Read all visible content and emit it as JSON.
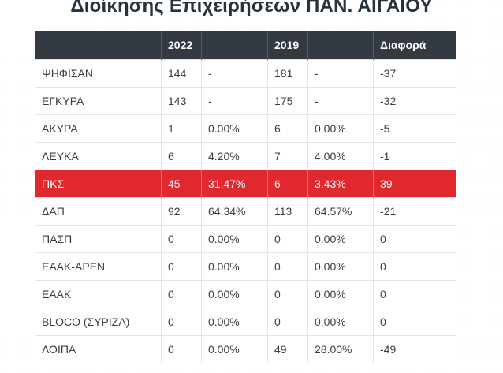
{
  "title": "Διοίκησης Επιχειρήσεων ΠΑΝ. ΑΙΓΑΙΟΥ",
  "colors": {
    "header_bg": "#333a42",
    "highlight_row": "#e0282e"
  },
  "table": {
    "headers": [
      "",
      "2022",
      "",
      "2019",
      "",
      "Διαφορά"
    ],
    "rows": [
      {
        "label": "ΨΗΦΙΣΑΝ",
        "v2022": "144",
        "p2022": "-",
        "v2019": "181",
        "p2019": "-",
        "diff": "-37",
        "highlight": false
      },
      {
        "label": "ΕΓΚΥΡΑ",
        "v2022": "143",
        "p2022": "-",
        "v2019": "175",
        "p2019": "-",
        "diff": "-32",
        "highlight": false
      },
      {
        "label": "ΑΚΥΡΑ",
        "v2022": "1",
        "p2022": "0.00%",
        "v2019": "6",
        "p2019": "0.00%",
        "diff": "-5",
        "highlight": false
      },
      {
        "label": "ΛΕΥΚΑ",
        "v2022": "6",
        "p2022": "4.20%",
        "v2019": "7",
        "p2019": "4.00%",
        "diff": "-1",
        "highlight": false
      },
      {
        "label": "ΠΚΣ",
        "v2022": "45",
        "p2022": "31.47%",
        "v2019": "6",
        "p2019": "3.43%",
        "diff": "39",
        "highlight": true
      },
      {
        "label": "ΔΑΠ",
        "v2022": "92",
        "p2022": "64.34%",
        "v2019": "113",
        "p2019": "64.57%",
        "diff": "-21",
        "highlight": false
      },
      {
        "label": "ΠΑΣΠ",
        "v2022": "0",
        "p2022": "0.00%",
        "v2019": "0",
        "p2019": "0.00%",
        "diff": "0",
        "highlight": false
      },
      {
        "label": "ΕΑΑΚ-ΑΡΕΝ",
        "v2022": "0",
        "p2022": "0.00%",
        "v2019": "0",
        "p2019": "0.00%",
        "diff": "0",
        "highlight": false
      },
      {
        "label": "ΕΑΑΚ",
        "v2022": "0",
        "p2022": "0.00%",
        "v2019": "0",
        "p2019": "0.00%",
        "diff": "0",
        "highlight": false
      },
      {
        "label": "BLOCO (ΣΥΡΙΖΑ)",
        "v2022": "0",
        "p2022": "0.00%",
        "v2019": "0",
        "p2019": "0.00%",
        "diff": "0",
        "highlight": false
      },
      {
        "label": "ΛΟΙΠΑ",
        "v2022": "0",
        "p2022": "0.00%",
        "v2019": "49",
        "p2019": "28.00%",
        "diff": "-49",
        "highlight": false
      }
    ]
  }
}
